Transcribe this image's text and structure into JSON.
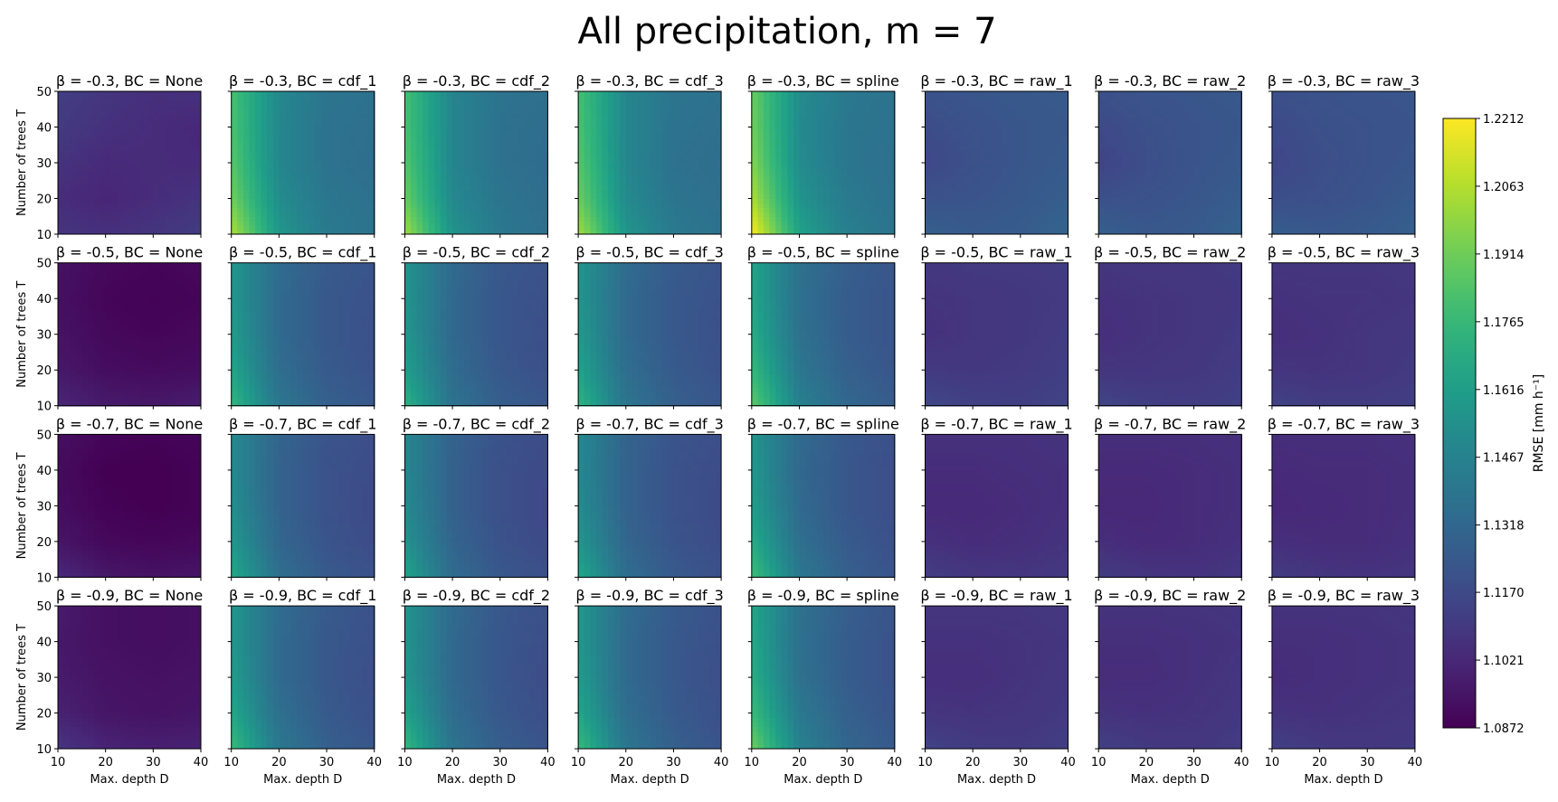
{
  "chart_data": {
    "type": "heatmap",
    "title": "All precipitation, m = 7",
    "layout": "grid",
    "rows_beta": [
      "-0.3",
      "-0.5",
      "-0.7",
      "-0.9"
    ],
    "cols_bc": [
      "None",
      "cdf_1",
      "cdf_2",
      "cdf_3",
      "spline",
      "raw_1",
      "raw_2",
      "raw_3"
    ],
    "panel_title_format": "β = {beta}, BC = {bc}",
    "xlabel": "Max. depth D",
    "ylabel": "Number of trees T",
    "x": [
      10,
      20,
      30,
      40
    ],
    "y": [
      10,
      20,
      30,
      40,
      50
    ],
    "xlim": [
      10,
      40
    ],
    "ylim": [
      10,
      50
    ],
    "x_ticks": [
      "10",
      "20",
      "30",
      "40"
    ],
    "y_ticks": [
      "10",
      "20",
      "30",
      "40",
      "50"
    ],
    "colormap": "viridis",
    "colorbar": {
      "label": "RMSE [mm h⁻¹]",
      "min": 1.0872,
      "max": 1.2212,
      "ticks": [
        "1.2212",
        "1.2063",
        "1.1914",
        "1.1765",
        "1.1616",
        "1.1467",
        "1.1318",
        "1.1170",
        "1.1021",
        "1.0872"
      ]
    },
    "panels": [
      [
        [
          [
            1.108,
            1.106,
            1.108,
            1.111
          ],
          [
            1.104,
            1.101,
            1.104,
            1.107
          ],
          [
            1.107,
            1.103,
            1.104,
            1.103
          ],
          [
            1.11,
            1.106,
            1.104,
            1.102
          ],
          [
            1.112,
            1.108,
            1.105,
            1.106
          ]
        ],
        [
          [
            1.205,
            1.158,
            1.142,
            1.138
          ],
          [
            1.192,
            1.152,
            1.14,
            1.137
          ],
          [
            1.186,
            1.149,
            1.138,
            1.135
          ],
          [
            1.183,
            1.149,
            1.138,
            1.136
          ],
          [
            1.182,
            1.15,
            1.139,
            1.137
          ]
        ],
        [
          [
            1.202,
            1.156,
            1.141,
            1.136
          ],
          [
            1.19,
            1.15,
            1.139,
            1.135
          ],
          [
            1.185,
            1.148,
            1.137,
            1.134
          ],
          [
            1.182,
            1.148,
            1.137,
            1.135
          ],
          [
            1.181,
            1.148,
            1.138,
            1.136
          ]
        ],
        [
          [
            1.203,
            1.157,
            1.142,
            1.137
          ],
          [
            1.191,
            1.151,
            1.139,
            1.136
          ],
          [
            1.186,
            1.149,
            1.137,
            1.135
          ],
          [
            1.183,
            1.149,
            1.138,
            1.136
          ],
          [
            1.182,
            1.149,
            1.139,
            1.137
          ]
        ],
        [
          [
            1.221,
            1.164,
            1.145,
            1.139
          ],
          [
            1.205,
            1.156,
            1.142,
            1.137
          ],
          [
            1.196,
            1.152,
            1.14,
            1.136
          ],
          [
            1.192,
            1.151,
            1.14,
            1.137
          ],
          [
            1.19,
            1.152,
            1.141,
            1.138
          ]
        ],
        [
          [
            1.128,
            1.125,
            1.126,
            1.13
          ],
          [
            1.121,
            1.122,
            1.124,
            1.127
          ],
          [
            1.116,
            1.12,
            1.123,
            1.125
          ],
          [
            1.118,
            1.121,
            1.123,
            1.124
          ],
          [
            1.121,
            1.123,
            1.124,
            1.125
          ]
        ],
        [
          [
            1.128,
            1.124,
            1.125,
            1.129
          ],
          [
            1.12,
            1.121,
            1.123,
            1.126
          ],
          [
            1.114,
            1.119,
            1.122,
            1.124
          ],
          [
            1.117,
            1.12,
            1.122,
            1.123
          ],
          [
            1.12,
            1.122,
            1.123,
            1.124
          ]
        ],
        [
          [
            1.127,
            1.124,
            1.125,
            1.128
          ],
          [
            1.119,
            1.12,
            1.122,
            1.125
          ],
          [
            1.115,
            1.119,
            1.121,
            1.123
          ],
          [
            1.117,
            1.12,
            1.121,
            1.122
          ],
          [
            1.12,
            1.121,
            1.122,
            1.123
          ]
        ]
      ],
      [
        [
          [
            1.102,
            1.097,
            1.096,
            1.098
          ],
          [
            1.096,
            1.092,
            1.091,
            1.092
          ],
          [
            1.094,
            1.09,
            1.089,
            1.09
          ],
          [
            1.093,
            1.089,
            1.088,
            1.089
          ],
          [
            1.094,
            1.09,
            1.089,
            1.09
          ]
        ],
        [
          [
            1.175,
            1.14,
            1.128,
            1.124
          ],
          [
            1.165,
            1.135,
            1.125,
            1.121
          ],
          [
            1.16,
            1.133,
            1.124,
            1.12
          ],
          [
            1.158,
            1.133,
            1.124,
            1.121
          ],
          [
            1.158,
            1.134,
            1.125,
            1.122
          ]
        ],
        [
          [
            1.172,
            1.138,
            1.127,
            1.123
          ],
          [
            1.162,
            1.134,
            1.124,
            1.12
          ],
          [
            1.158,
            1.132,
            1.123,
            1.119
          ],
          [
            1.156,
            1.132,
            1.123,
            1.12
          ],
          [
            1.156,
            1.133,
            1.124,
            1.121
          ]
        ],
        [
          [
            1.174,
            1.139,
            1.128,
            1.123
          ],
          [
            1.164,
            1.135,
            1.125,
            1.121
          ],
          [
            1.159,
            1.133,
            1.124,
            1.12
          ],
          [
            1.157,
            1.133,
            1.124,
            1.121
          ],
          [
            1.157,
            1.134,
            1.125,
            1.122
          ]
        ],
        [
          [
            1.188,
            1.146,
            1.132,
            1.126
          ],
          [
            1.176,
            1.14,
            1.128,
            1.123
          ],
          [
            1.169,
            1.137,
            1.126,
            1.122
          ],
          [
            1.166,
            1.136,
            1.126,
            1.122
          ],
          [
            1.165,
            1.137,
            1.127,
            1.123
          ]
        ],
        [
          [
            1.116,
            1.113,
            1.112,
            1.114
          ],
          [
            1.11,
            1.109,
            1.11,
            1.112
          ],
          [
            1.106,
            1.108,
            1.109,
            1.111
          ],
          [
            1.107,
            1.108,
            1.109,
            1.11
          ],
          [
            1.109,
            1.11,
            1.11,
            1.111
          ]
        ],
        [
          [
            1.115,
            1.112,
            1.111,
            1.113
          ],
          [
            1.108,
            1.108,
            1.109,
            1.111
          ],
          [
            1.105,
            1.107,
            1.108,
            1.11
          ],
          [
            1.106,
            1.107,
            1.108,
            1.109
          ],
          [
            1.108,
            1.109,
            1.109,
            1.11
          ]
        ],
        [
          [
            1.114,
            1.111,
            1.111,
            1.112
          ],
          [
            1.108,
            1.107,
            1.108,
            1.11
          ],
          [
            1.105,
            1.106,
            1.108,
            1.109
          ],
          [
            1.106,
            1.107,
            1.107,
            1.108
          ],
          [
            1.108,
            1.108,
            1.108,
            1.109
          ]
        ]
      ],
      [
        [
          [
            1.103,
            1.096,
            1.094,
            1.095
          ],
          [
            1.095,
            1.09,
            1.089,
            1.09
          ],
          [
            1.092,
            1.088,
            1.087,
            1.088
          ],
          [
            1.091,
            1.087,
            1.087,
            1.088
          ],
          [
            1.093,
            1.089,
            1.088,
            1.089
          ]
        ],
        [
          [
            1.168,
            1.136,
            1.125,
            1.121
          ],
          [
            1.158,
            1.131,
            1.122,
            1.118
          ],
          [
            1.153,
            1.129,
            1.121,
            1.117
          ],
          [
            1.151,
            1.129,
            1.121,
            1.118
          ],
          [
            1.151,
            1.13,
            1.122,
            1.119
          ]
        ],
        [
          [
            1.165,
            1.134,
            1.124,
            1.12
          ],
          [
            1.155,
            1.13,
            1.121,
            1.117
          ],
          [
            1.151,
            1.128,
            1.12,
            1.116
          ],
          [
            1.149,
            1.128,
            1.12,
            1.117
          ],
          [
            1.149,
            1.129,
            1.121,
            1.118
          ]
        ],
        [
          [
            1.167,
            1.135,
            1.125,
            1.12
          ],
          [
            1.157,
            1.131,
            1.122,
            1.118
          ],
          [
            1.152,
            1.129,
            1.121,
            1.117
          ],
          [
            1.15,
            1.129,
            1.121,
            1.118
          ],
          [
            1.15,
            1.13,
            1.122,
            1.119
          ]
        ],
        [
          [
            1.18,
            1.141,
            1.128,
            1.122
          ],
          [
            1.168,
            1.136,
            1.125,
            1.12
          ],
          [
            1.161,
            1.133,
            1.123,
            1.119
          ],
          [
            1.158,
            1.132,
            1.123,
            1.119
          ],
          [
            1.157,
            1.133,
            1.124,
            1.12
          ]
        ],
        [
          [
            1.112,
            1.109,
            1.108,
            1.11
          ],
          [
            1.106,
            1.104,
            1.105,
            1.107
          ],
          [
            1.103,
            1.103,
            1.104,
            1.106
          ],
          [
            1.104,
            1.104,
            1.105,
            1.106
          ],
          [
            1.106,
            1.106,
            1.106,
            1.107
          ]
        ],
        [
          [
            1.111,
            1.108,
            1.107,
            1.109
          ],
          [
            1.105,
            1.103,
            1.104,
            1.106
          ],
          [
            1.102,
            1.102,
            1.104,
            1.105
          ],
          [
            1.103,
            1.103,
            1.104,
            1.105
          ],
          [
            1.105,
            1.105,
            1.105,
            1.106
          ]
        ],
        [
          [
            1.111,
            1.108,
            1.107,
            1.108
          ],
          [
            1.105,
            1.104,
            1.104,
            1.106
          ],
          [
            1.102,
            1.103,
            1.104,
            1.105
          ],
          [
            1.103,
            1.104,
            1.104,
            1.105
          ],
          [
            1.105,
            1.105,
            1.105,
            1.106
          ]
        ]
      ],
      [
        [
          [
            1.108,
            1.101,
            1.099,
            1.1
          ],
          [
            1.1,
            1.095,
            1.094,
            1.095
          ],
          [
            1.097,
            1.094,
            1.093,
            1.094
          ],
          [
            1.096,
            1.093,
            1.092,
            1.093
          ],
          [
            1.097,
            1.093,
            1.092,
            1.093
          ]
        ],
        [
          [
            1.178,
            1.141,
            1.128,
            1.123
          ],
          [
            1.166,
            1.136,
            1.125,
            1.12
          ],
          [
            1.16,
            1.133,
            1.124,
            1.119
          ],
          [
            1.158,
            1.133,
            1.124,
            1.12
          ],
          [
            1.158,
            1.134,
            1.125,
            1.121
          ]
        ],
        [
          [
            1.176,
            1.139,
            1.127,
            1.122
          ],
          [
            1.164,
            1.134,
            1.124,
            1.119
          ],
          [
            1.158,
            1.132,
            1.123,
            1.118
          ],
          [
            1.156,
            1.132,
            1.123,
            1.119
          ],
          [
            1.156,
            1.133,
            1.124,
            1.12
          ]
        ],
        [
          [
            1.178,
            1.14,
            1.128,
            1.122
          ],
          [
            1.166,
            1.135,
            1.125,
            1.12
          ],
          [
            1.16,
            1.133,
            1.124,
            1.119
          ],
          [
            1.158,
            1.133,
            1.124,
            1.12
          ],
          [
            1.158,
            1.134,
            1.125,
            1.121
          ]
        ],
        [
          [
            1.192,
            1.147,
            1.131,
            1.125
          ],
          [
            1.178,
            1.141,
            1.128,
            1.122
          ],
          [
            1.17,
            1.137,
            1.126,
            1.121
          ],
          [
            1.167,
            1.136,
            1.126,
            1.121
          ],
          [
            1.166,
            1.137,
            1.127,
            1.122
          ]
        ],
        [
          [
            1.114,
            1.111,
            1.11,
            1.112
          ],
          [
            1.108,
            1.107,
            1.108,
            1.11
          ],
          [
            1.105,
            1.105,
            1.107,
            1.109
          ],
          [
            1.106,
            1.106,
            1.107,
            1.108
          ],
          [
            1.108,
            1.108,
            1.108,
            1.109
          ]
        ],
        [
          [
            1.113,
            1.11,
            1.109,
            1.111
          ],
          [
            1.107,
            1.106,
            1.107,
            1.109
          ],
          [
            1.104,
            1.104,
            1.106,
            1.108
          ],
          [
            1.105,
            1.105,
            1.106,
            1.107
          ],
          [
            1.107,
            1.107,
            1.107,
            1.108
          ]
        ],
        [
          [
            1.113,
            1.11,
            1.109,
            1.11
          ],
          [
            1.107,
            1.106,
            1.107,
            1.108
          ],
          [
            1.104,
            1.105,
            1.106,
            1.107
          ],
          [
            1.105,
            1.105,
            1.106,
            1.107
          ],
          [
            1.107,
            1.107,
            1.107,
            1.108
          ]
        ]
      ]
    ]
  }
}
